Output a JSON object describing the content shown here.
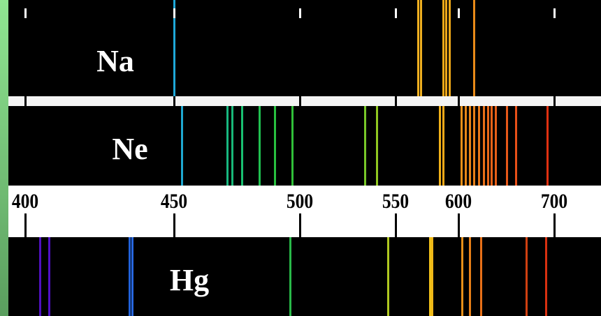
{
  "colors": {
    "page_frame": "#7cd88a",
    "band_background": "#000000",
    "scale_background": "#ffffff"
  },
  "scale": {
    "labels": [
      "400",
      "450",
      "500",
      "550",
      "600",
      "700"
    ],
    "tick_values_nm": [
      400,
      450,
      500,
      550,
      600,
      700
    ]
  },
  "spectra": [
    {
      "element": "Na",
      "lines": [
        {
          "nm": 450,
          "color": "#1ea8d8"
        },
        {
          "nm": 568,
          "color": "#f0b020"
        },
        {
          "nm": 570,
          "color": "#f0b020"
        },
        {
          "nm": 588,
          "color": "#f0a818"
        },
        {
          "nm": 590,
          "color": "#f0a818"
        },
        {
          "nm": 593,
          "color": "#f0a818"
        },
        {
          "nm": 616,
          "color": "#e88a18"
        }
      ]
    },
    {
      "element": "Ne",
      "lines": [
        {
          "nm": 453,
          "color": "#1ea8d0"
        },
        {
          "nm": 471,
          "color": "#18b880"
        },
        {
          "nm": 473,
          "color": "#18b878"
        },
        {
          "nm": 477,
          "color": "#18c070"
        },
        {
          "nm": 484,
          "color": "#20c050"
        },
        {
          "nm": 490,
          "color": "#28c040"
        },
        {
          "nm": 497,
          "color": "#30c038"
        },
        {
          "nm": 534,
          "color": "#78c828"
        },
        {
          "nm": 540,
          "color": "#90c820"
        },
        {
          "nm": 585,
          "color": "#f0b018"
        },
        {
          "nm": 588,
          "color": "#f0a818"
        },
        {
          "nm": 603,
          "color": "#e89018"
        },
        {
          "nm": 607,
          "color": "#e88818"
        },
        {
          "nm": 612,
          "color": "#e88418"
        },
        {
          "nm": 616,
          "color": "#e88018"
        },
        {
          "nm": 621,
          "color": "#e87818"
        },
        {
          "nm": 626,
          "color": "#e87018"
        },
        {
          "nm": 631,
          "color": "#e86818"
        },
        {
          "nm": 634,
          "color": "#e86418"
        },
        {
          "nm": 639,
          "color": "#e86018"
        },
        {
          "nm": 650,
          "color": "#e85818"
        },
        {
          "nm": 660,
          "color": "#e85018"
        },
        {
          "nm": 693,
          "color": "#e03010"
        }
      ]
    },
    {
      "element": "Hg",
      "lines": [
        {
          "nm": 405,
          "color": "#5010c0"
        },
        {
          "nm": 408,
          "color": "#5010c8"
        },
        {
          "nm": 435,
          "color": "#2060d8"
        },
        {
          "nm": 436,
          "color": "#2868e0"
        },
        {
          "nm": 496,
          "color": "#28b848"
        },
        {
          "nm": 546,
          "color": "#b0c820"
        },
        {
          "nm": 577,
          "color": "#f0c018"
        },
        {
          "nm": 579,
          "color": "#f0b818"
        },
        {
          "nm": 604,
          "color": "#e89018"
        },
        {
          "nm": 612,
          "color": "#e88018"
        },
        {
          "nm": 623,
          "color": "#e87018"
        },
        {
          "nm": 671,
          "color": "#d04010"
        },
        {
          "nm": 691,
          "color": "#d83010"
        }
      ]
    }
  ]
}
